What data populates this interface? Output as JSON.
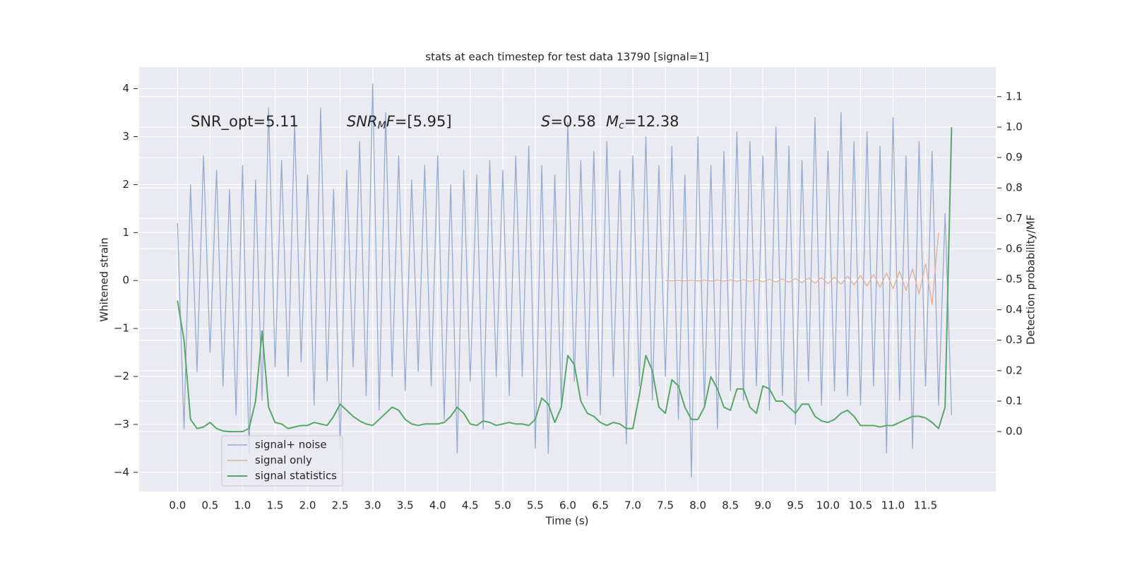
{
  "chart_data": {
    "type": "line",
    "title": "stats at each timestep for test data 13790 [signal=1]",
    "xlabel": "Time (s)",
    "ylabel": "Whitened strain",
    "y2label": "Detection probability/MF",
    "annotations": [
      [
        {
          "text": "SNR_opt=5.11"
        }
      ],
      [
        {
          "text": "SNR",
          "italic": true
        },
        {
          "text": "M",
          "italic": true,
          "sub": true
        },
        {
          "text": "F",
          "italic": true
        },
        {
          "text": "=[5.95]"
        }
      ],
      [
        {
          "text": "S",
          "italic": true
        },
        {
          "text": "=0.58"
        }
      ],
      [
        {
          "text": "M",
          "italic": true
        },
        {
          "text": "c",
          "italic": true,
          "sub": true
        },
        {
          "text": "=12.38"
        }
      ]
    ],
    "xlim": [
      -0.59,
      12.58
    ],
    "ylim": [
      -4.4,
      4.45
    ],
    "y2lim": [
      -0.197,
      1.197
    ],
    "xticks": [
      {
        "value": 0,
        "label": "0.0"
      },
      {
        "value": 0.5,
        "label": "0.5"
      },
      {
        "value": 1,
        "label": "1.0"
      },
      {
        "value": 1.5,
        "label": "1.5"
      },
      {
        "value": 2,
        "label": "2.0"
      },
      {
        "value": 2.5,
        "label": "2.5"
      },
      {
        "value": 3,
        "label": "3.0"
      },
      {
        "value": 3.5,
        "label": "3.5"
      },
      {
        "value": 4,
        "label": "4.0"
      },
      {
        "value": 4.5,
        "label": "4.5"
      },
      {
        "value": 5,
        "label": "5.0"
      },
      {
        "value": 5.5,
        "label": "5.5"
      },
      {
        "value": 6,
        "label": "6.0"
      },
      {
        "value": 6.5,
        "label": "6.5"
      },
      {
        "value": 7,
        "label": "7.0"
      },
      {
        "value": 7.5,
        "label": "7.5"
      },
      {
        "value": 8,
        "label": "8.0"
      },
      {
        "value": 8.5,
        "label": "8.5"
      },
      {
        "value": 9,
        "label": "9.0"
      },
      {
        "value": 9.5,
        "label": "9.5"
      },
      {
        "value": 10,
        "label": "10.0"
      },
      {
        "value": 10.5,
        "label": "10.5"
      },
      {
        "value": 11,
        "label": "11.0"
      },
      {
        "value": 11.5,
        "label": "11.5"
      }
    ],
    "yticks": [
      {
        "value": -4,
        "label": "−4"
      },
      {
        "value": -3,
        "label": "−3"
      },
      {
        "value": -2,
        "label": "−2"
      },
      {
        "value": -1,
        "label": "−1"
      },
      0,
      1,
      2,
      3,
      4
    ],
    "y2ticks": [
      {
        "value": 0,
        "label": "0.0"
      },
      {
        "value": 0.1,
        "label": "0.1"
      },
      {
        "value": 0.2,
        "label": "0.2"
      },
      {
        "value": 0.3,
        "label": "0.3"
      },
      {
        "value": 0.4,
        "label": "0.4"
      },
      {
        "value": 0.5,
        "label": "0.5"
      },
      {
        "value": 0.6,
        "label": "0.6"
      },
      {
        "value": 0.7,
        "label": "0.7"
      },
      {
        "value": 0.8,
        "label": "0.8"
      },
      {
        "value": 0.9,
        "label": "0.9"
      },
      {
        "value": 1,
        "label": "1.0"
      },
      {
        "value": 1.1,
        "label": "1.1"
      }
    ],
    "grid": true,
    "legend": "lower left",
    "x": [
      0.0,
      0.1,
      0.2,
      0.3,
      0.4,
      0.5,
      0.6,
      0.7,
      0.8,
      0.9,
      1.0,
      1.1,
      1.2,
      1.3,
      1.4,
      1.5,
      1.6,
      1.7,
      1.8,
      1.9,
      2.0,
      2.1,
      2.2,
      2.3,
      2.4,
      2.5,
      2.6,
      2.7,
      2.8,
      2.9,
      3.0,
      3.1,
      3.2,
      3.3,
      3.4,
      3.5,
      3.6,
      3.7,
      3.8,
      3.9,
      4.0,
      4.1,
      4.2,
      4.3,
      4.4,
      4.5,
      4.6,
      4.7,
      4.8,
      4.9,
      5.0,
      5.1,
      5.2,
      5.3,
      5.4,
      5.5,
      5.6,
      5.7,
      5.8,
      5.9,
      6.0,
      6.1,
      6.2,
      6.3,
      6.4,
      6.5,
      6.6,
      6.7,
      6.8,
      6.9,
      7.0,
      7.1,
      7.2,
      7.3,
      7.4,
      7.5,
      7.6,
      7.7,
      7.8,
      7.9,
      8.0,
      8.1,
      8.2,
      8.3,
      8.4,
      8.5,
      8.6,
      8.7,
      8.8,
      8.9,
      9.0,
      9.1,
      9.2,
      9.3,
      9.4,
      9.5,
      9.6,
      9.7,
      9.8,
      9.9,
      10.0,
      10.1,
      10.2,
      10.3,
      10.4,
      10.5,
      10.6,
      10.7,
      10.8,
      10.9,
      11.0,
      11.1,
      11.2,
      11.3,
      11.4,
      11.5,
      11.6,
      11.7,
      11.8,
      11.9
    ],
    "series": [
      {
        "name": "signal+ noise",
        "color": "#99aacf",
        "values": [
          1.2,
          -3.1,
          2.0,
          -1.9,
          2.6,
          -1.5,
          2.3,
          -2.2,
          1.9,
          -2.8,
          2.4,
          -3.6,
          2.1,
          -2.5,
          3.6,
          -1.8,
          2.5,
          -2.0,
          3.3,
          -1.7,
          2.2,
          -2.6,
          3.6,
          -2.1,
          1.9,
          -3.5,
          2.3,
          -1.8,
          2.9,
          -2.4,
          4.1,
          -2.7,
          3.5,
          -2.0,
          2.6,
          -2.3,
          2.1,
          -1.9,
          2.4,
          -2.2,
          2.6,
          -2.9,
          2.0,
          -3.6,
          2.3,
          -2.1,
          2.2,
          -3.1,
          2.5,
          -2.0,
          2.3,
          -2.4,
          2.6,
          -2.0,
          2.8,
          -3.5,
          2.4,
          -3.6,
          2.2,
          -2.6,
          3.3,
          -2.1,
          2.5,
          -2.4,
          2.7,
          -2.8,
          2.9,
          -2.0,
          2.3,
          -3.4,
          2.6,
          -2.2,
          3.0,
          -2.5,
          2.4,
          -2.0,
          2.8,
          -2.9,
          2.2,
          -4.1,
          3.0,
          -2.6,
          2.4,
          -3.1,
          2.7,
          -2.3,
          3.1,
          -2.5,
          2.9,
          -2.2,
          2.6,
          -2.7,
          3.2,
          -2.4,
          2.8,
          -3.0,
          2.5,
          -2.1,
          3.4,
          -2.6,
          2.7,
          -2.3,
          3.5,
          -2.4,
          2.9,
          -2.6,
          3.1,
          -2.2,
          2.8,
          -3.6,
          3.4,
          -2.5,
          2.6,
          -3.5,
          2.9,
          -2.2,
          2.7,
          -2.6,
          1.4,
          -2.8
        ]
      },
      {
        "name": "signal only",
        "color": "#e5ae95",
        "x": [
          7.5,
          7.6,
          7.7,
          7.8,
          7.9,
          8.0,
          8.1,
          8.2,
          8.3,
          8.4,
          8.5,
          8.6,
          8.7,
          8.8,
          8.9,
          9.0,
          9.1,
          9.2,
          9.3,
          9.4,
          9.5,
          9.6,
          9.7,
          9.8,
          9.9,
          10.0,
          10.1,
          10.2,
          10.3,
          10.4,
          10.5,
          10.6,
          10.7,
          10.8,
          10.9,
          11.0,
          11.1,
          11.2,
          11.3,
          11.4,
          11.5,
          11.6,
          11.7
        ],
        "values": [
          0.005,
          -0.006,
          0.007,
          -0.008,
          0.009,
          -0.01,
          0.011,
          -0.012,
          0.013,
          -0.014,
          0.015,
          -0.017,
          0.019,
          -0.021,
          0.023,
          -0.025,
          0.028,
          -0.031,
          0.034,
          -0.037,
          0.041,
          -0.045,
          0.05,
          -0.055,
          0.06,
          -0.066,
          0.072,
          -0.079,
          0.087,
          -0.095,
          0.104,
          -0.115,
          0.127,
          -0.14,
          0.155,
          -0.17,
          0.19,
          -0.21,
          0.24,
          -0.28,
          0.35,
          -0.5,
          1.0
        ]
      },
      {
        "name": "signal statistics",
        "color": "#55a868",
        "axis": "y2",
        "values": [
          0.43,
          0.3,
          0.04,
          0.01,
          0.015,
          0.03,
          0.01,
          0.002,
          0,
          0,
          0,
          0.01,
          0.1,
          0.33,
          0.08,
          0.03,
          0.025,
          0.01,
          0.015,
          0.02,
          0.02,
          0.03,
          0.025,
          0.02,
          0.05,
          0.09,
          0.07,
          0.05,
          0.035,
          0.025,
          0.02,
          0.04,
          0.06,
          0.08,
          0.07,
          0.04,
          0.025,
          0.02,
          0.025,
          0.025,
          0.025,
          0.03,
          0.05,
          0.08,
          0.06,
          0.025,
          0.02,
          0.035,
          0.03,
          0.02,
          0.025,
          0.03,
          0.025,
          0.025,
          0.02,
          0.04,
          0.11,
          0.09,
          0.03,
          0.08,
          0.25,
          0.22,
          0.1,
          0.06,
          0.05,
          0.03,
          0.02,
          0.03,
          0.025,
          0.01,
          0.01,
          0.12,
          0.25,
          0.2,
          0.08,
          0.06,
          0.17,
          0.15,
          0.08,
          0.04,
          0.04,
          0.08,
          0.18,
          0.14,
          0.08,
          0.07,
          0.14,
          0.14,
          0.08,
          0.06,
          0.15,
          0.14,
          0.1,
          0.1,
          0.08,
          0.06,
          0.09,
          0.09,
          0.05,
          0.035,
          0.03,
          0.04,
          0.06,
          0.07,
          0.05,
          0.02,
          0.02,
          0.02,
          0.015,
          0.02,
          0.02,
          0.03,
          0.04,
          0.05,
          0.05,
          0.045,
          0.03,
          0.01,
          0.08,
          1.0
        ]
      }
    ]
  }
}
